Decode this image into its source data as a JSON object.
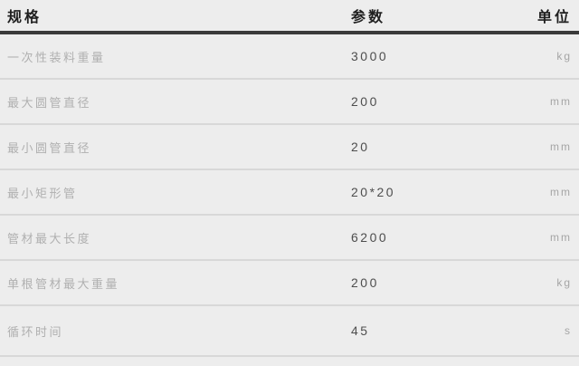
{
  "table": {
    "columns": {
      "spec": "规格",
      "param": "参数",
      "unit": "单位"
    },
    "rows": [
      {
        "spec": "一次性装料重量",
        "param": "3000",
        "unit": "kg"
      },
      {
        "spec": "最大圆管直径",
        "param": "200",
        "unit": "mm"
      },
      {
        "spec": "最小圆管直径",
        "param": "20",
        "unit": "mm"
      },
      {
        "spec": "最小矩形管",
        "param": "20*20",
        "unit": "mm"
      },
      {
        "spec": "管材最大长度",
        "param": "6200",
        "unit": "mm"
      },
      {
        "spec": "单根管材最大重量",
        "param": "200",
        "unit": "kg"
      },
      {
        "spec": "循环时间",
        "param": "45",
        "unit": "s"
      }
    ],
    "colors": {
      "background": "#ededed",
      "header_text": "#1f1f1f",
      "header_rule": "#3a3a3a",
      "row_divider": "#d8d8d8",
      "spec_text": "#b0b0b0",
      "param_text": "#4e4e4e",
      "unit_text": "#a5a5a5"
    }
  }
}
